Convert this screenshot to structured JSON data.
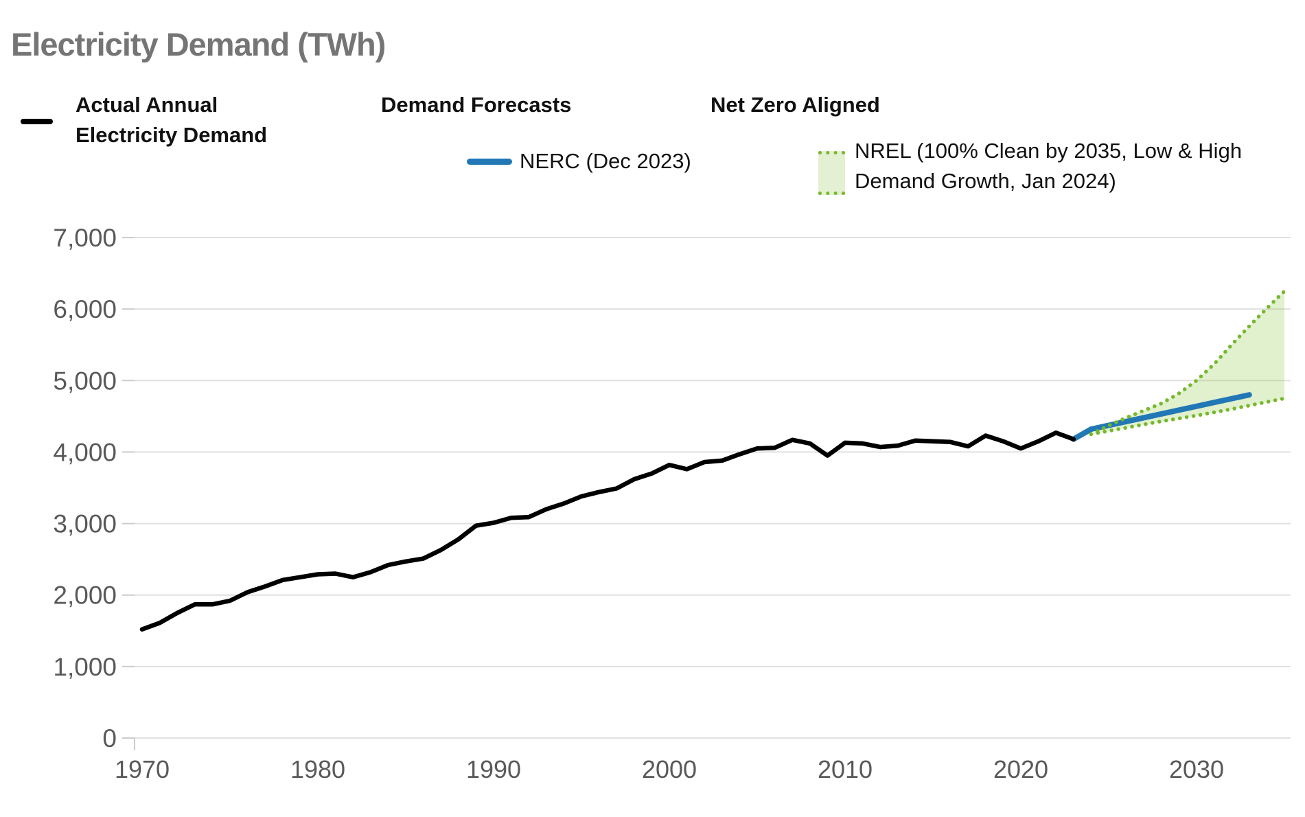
{
  "title": "Electricity Demand (TWh)",
  "legend": {
    "actual_label_line1": "Actual Annual",
    "actual_label_line2": "Electricity Demand",
    "forecasts_heading": "Demand Forecasts",
    "nerc_label": "NERC (Dec 2023)",
    "netzero_heading": "Net Zero Aligned",
    "nrel_label_line1": "NREL (100% Clean by 2035, Low & High",
    "nrel_label_line2": "Demand Growth, Jan 2024)"
  },
  "colors": {
    "title_gray": "#757575",
    "axis_label_gray": "#595959",
    "gridline": "#e0e0e0",
    "tick_stub": "#cccccc",
    "actual_black": "#000000",
    "nerc_blue": "#2178b5",
    "nrel_green_dot": "#76b82d",
    "nrel_band_fill": "rgba(141,198,63,0.26)"
  },
  "chart_data": {
    "type": "line",
    "title": "Electricity Demand (TWh)",
    "ylabel": "TWh",
    "ylim": [
      0,
      7000
    ],
    "xlim": [
      1970,
      2035
    ],
    "grid": "horizontal",
    "legend_position": "top",
    "y_ticks": [
      0,
      1000,
      2000,
      3000,
      4000,
      5000,
      6000,
      7000
    ],
    "y_tick_labels": [
      "0",
      "1,000",
      "2,000",
      "3,000",
      "4,000",
      "5,000",
      "6,000",
      "7,000"
    ],
    "x_ticks": [
      1970,
      1980,
      1990,
      2000,
      2010,
      2020,
      2030
    ],
    "x_tick_labels": [
      "1970",
      "1980",
      "1990",
      "2000",
      "2010",
      "2020",
      "2030"
    ],
    "series": [
      {
        "name": "Actual Annual Electricity Demand",
        "type": "line",
        "color": "#000000",
        "x": [
          1970,
          1971,
          1972,
          1973,
          1974,
          1975,
          1976,
          1977,
          1978,
          1979,
          1980,
          1981,
          1982,
          1983,
          1984,
          1985,
          1986,
          1987,
          1988,
          1989,
          1990,
          1991,
          1992,
          1993,
          1994,
          1995,
          1996,
          1997,
          1998,
          1999,
          2000,
          2001,
          2002,
          2003,
          2004,
          2005,
          2006,
          2007,
          2008,
          2009,
          2010,
          2011,
          2012,
          2013,
          2014,
          2015,
          2016,
          2017,
          2018,
          2019,
          2020,
          2021,
          2022,
          2023
        ],
        "values": [
          1520,
          1610,
          1750,
          1870,
          1870,
          1920,
          2040,
          2120,
          2210,
          2250,
          2290,
          2300,
          2250,
          2320,
          2420,
          2470,
          2510,
          2630,
          2780,
          2970,
          3010,
          3080,
          3090,
          3200,
          3280,
          3380,
          3440,
          3490,
          3620,
          3700,
          3820,
          3760,
          3860,
          3880,
          3970,
          4050,
          4060,
          4170,
          4120,
          3950,
          4130,
          4120,
          4070,
          4090,
          4160,
          4150,
          4140,
          4080,
          4230,
          4150,
          4050,
          4150,
          4270,
          4180
        ]
      },
      {
        "name": "NERC (Dec 2023)",
        "type": "line",
        "color": "#2178b5",
        "x": [
          2023,
          2024,
          2033
        ],
        "values": [
          4180,
          4320,
          4800
        ]
      },
      {
        "name": "NREL (100% Clean by 2035, Low & High Demand Growth, Jan 2024)",
        "type": "band",
        "line_style": "dotted",
        "line_color": "#76b82d",
        "fill_color": "rgba(141,198,63,0.26)",
        "x": [
          2024,
          2025,
          2026,
          2027,
          2028,
          2029,
          2030,
          2031,
          2032,
          2033,
          2034,
          2035
        ],
        "low": [
          4250,
          4295,
          4340,
          4385,
          4430,
          4470,
          4510,
          4555,
          4600,
          4650,
          4700,
          4750
        ],
        "high": [
          4250,
          4370,
          4480,
          4580,
          4680,
          4820,
          5000,
          5230,
          5500,
          5760,
          6010,
          6250
        ]
      }
    ]
  }
}
